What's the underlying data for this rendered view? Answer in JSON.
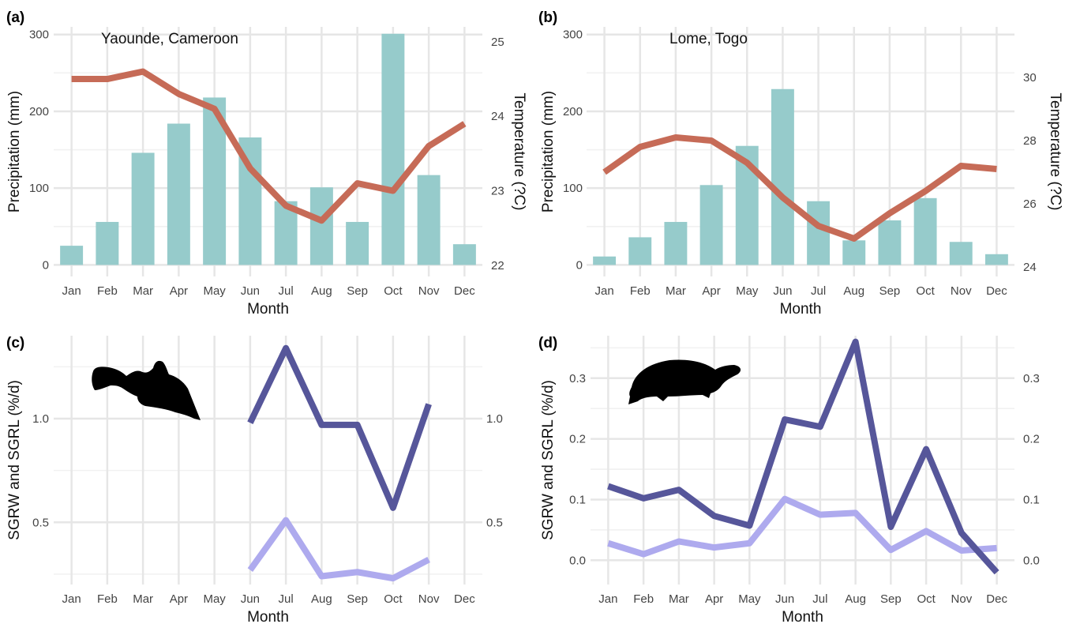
{
  "colors": {
    "bar": "#96cbcb",
    "temperature_line": "#c66b57",
    "sgrw_line": "#56569a",
    "sgrl_line": "#aeaaee",
    "silhouette": "#000000"
  },
  "chart_data": [
    {
      "panel": "(a)",
      "type": "bar",
      "annotation": "Yaounde, Cameroon",
      "categories": [
        "Jan",
        "Feb",
        "Mar",
        "Apr",
        "May",
        "Jun",
        "Jul",
        "Aug",
        "Sep",
        "Oct",
        "Nov",
        "Dec"
      ],
      "series": [
        {
          "name": "Precipitation",
          "type": "bar",
          "axis": "left",
          "values": [
            25,
            56,
            146,
            184,
            218,
            166,
            83,
            101,
            56,
            301,
            117,
            27
          ]
        },
        {
          "name": "Temperature",
          "type": "line",
          "axis": "right",
          "values": [
            24.5,
            24.5,
            24.6,
            24.3,
            24.1,
            23.3,
            22.8,
            22.6,
            23.1,
            23.0,
            23.6,
            23.9
          ]
        }
      ],
      "xlabel": "Month",
      "ylabel": "Precipitation (mm)",
      "y2label": "Temperature (?C)",
      "ylim": [
        -15,
        310
      ],
      "y2lim": [
        21.85,
        25.2
      ],
      "yticks": [
        0,
        100,
        200,
        300
      ],
      "y2ticks": [
        22,
        23,
        24,
        25
      ],
      "grid": true
    },
    {
      "panel": "(b)",
      "type": "bar",
      "annotation": "Lome, Togo",
      "categories": [
        "Jan",
        "Feb",
        "Mar",
        "Apr",
        "May",
        "Jun",
        "Jul",
        "Aug",
        "Sep",
        "Oct",
        "Nov",
        "Dec"
      ],
      "series": [
        {
          "name": "Precipitation",
          "type": "bar",
          "axis": "left",
          "values": [
            11,
            36,
            56,
            104,
            155,
            229,
            83,
            32,
            58,
            87,
            30,
            14
          ]
        },
        {
          "name": "Temperature",
          "type": "line",
          "axis": "right",
          "values": [
            27.0,
            27.8,
            28.1,
            28.0,
            27.3,
            26.2,
            25.3,
            24.9,
            25.7,
            26.4,
            27.2,
            27.1
          ]
        }
      ],
      "xlabel": "Month",
      "ylabel": "Precipitation (mm)",
      "y2label": "Temperature (?C)",
      "ylim": [
        -15,
        310
      ],
      "y2lim": [
        23.7,
        31.6
      ],
      "yticks": [
        0,
        100,
        200,
        300
      ],
      "y2ticks": [
        24,
        26,
        28,
        30
      ],
      "grid": true
    },
    {
      "panel": "(c)",
      "type": "line",
      "categories": [
        "Jan",
        "Feb",
        "Mar",
        "Apr",
        "May",
        "Jun",
        "Jul",
        "Aug",
        "Sep",
        "Oct",
        "Nov",
        "Dec"
      ],
      "series": [
        {
          "name": "SGRW",
          "values": [
            null,
            null,
            null,
            null,
            null,
            0.98,
            1.34,
            0.97,
            0.97,
            0.57,
            1.07,
            null
          ]
        },
        {
          "name": "SGRL",
          "values": [
            null,
            null,
            null,
            null,
            null,
            0.27,
            0.51,
            0.24,
            0.26,
            0.23,
            0.32,
            null
          ]
        }
      ],
      "xlabel": "Month",
      "ylabel": "SGRW and SGRL (%/d)",
      "ylim": [
        0.2,
        1.4
      ],
      "yticks": [
        0.5,
        1.0
      ],
      "yticklabels": [
        "0.5",
        "1.0"
      ],
      "y2ticks": [
        0.5,
        1.0
      ],
      "y2ticklabels": [
        "0.5",
        "1.0"
      ],
      "grid": true
    },
    {
      "panel": "(d)",
      "type": "line",
      "categories": [
        "Jan",
        "Feb",
        "Mar",
        "Apr",
        "May",
        "Jun",
        "Jul",
        "Aug",
        "Sep",
        "Oct",
        "Nov",
        "Dec"
      ],
      "series": [
        {
          "name": "SGRW",
          "values": [
            0.122,
            0.102,
            0.116,
            0.073,
            0.057,
            0.232,
            0.22,
            0.36,
            0.055,
            0.183,
            0.045,
            -0.02
          ]
        },
        {
          "name": "SGRL",
          "values": [
            0.028,
            0.01,
            0.031,
            0.021,
            0.028,
            0.101,
            0.075,
            0.078,
            0.017,
            0.048,
            0.016,
            0.02
          ]
        }
      ],
      "xlabel": "Month",
      "ylabel": "SGRW and SGRL (%/d)",
      "ylim": [
        -0.04,
        0.37
      ],
      "yticks": [
        0.0,
        0.1,
        0.2,
        0.3
      ],
      "yticklabels": [
        "0.0",
        "0.1",
        "0.2",
        "0.3"
      ],
      "y2ticks": [
        0.0,
        0.1,
        0.2,
        0.3
      ],
      "y2ticklabels": [
        "0.0",
        "0.1",
        "0.2",
        "0.3"
      ],
      "grid": true
    }
  ]
}
